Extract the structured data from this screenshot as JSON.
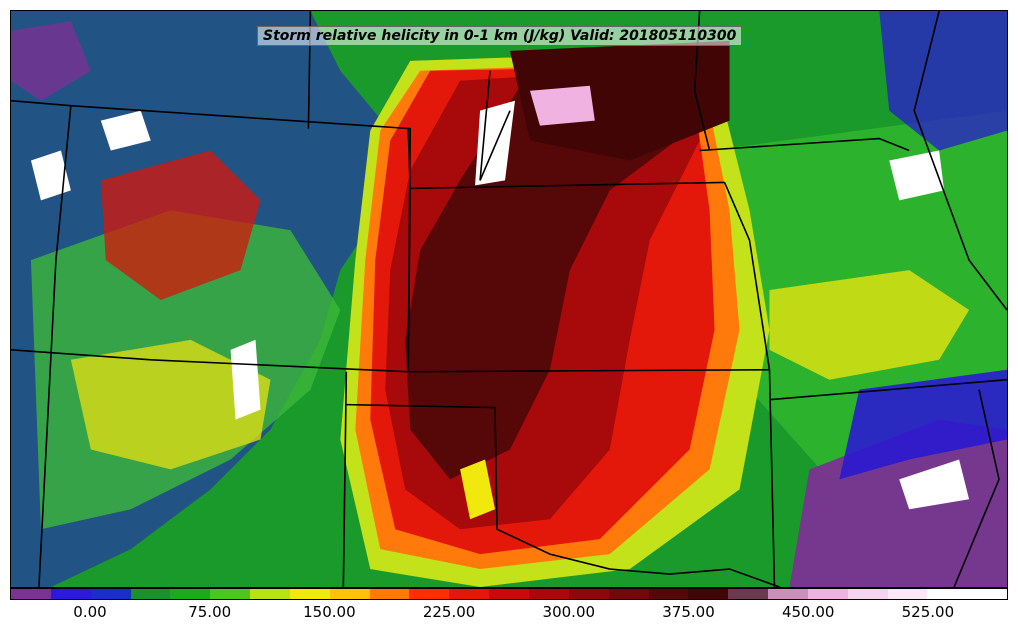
{
  "title": "Storm relative helicity in 0-1 km (J/kg) Valid: 201805110300",
  "colorbar": {
    "colors": [
      "#7b3294",
      "#2b1ad6",
      "#1a2fc4",
      "#1f8f2b",
      "#1ca81f",
      "#4ec622",
      "#b7e21a",
      "#f1e80d",
      "#ffc20a",
      "#ff7a0a",
      "#ff2d0a",
      "#e3180a",
      "#c70b0a",
      "#a8090a",
      "#8a0a0a",
      "#700a0a",
      "#560808",
      "#410505",
      "#6b3a4f",
      "#cc8fb9",
      "#f0b2e0",
      "#f6d3ee",
      "#fbe8f6",
      "#ffffff",
      "#ffffff"
    ],
    "tick_labels": [
      "0.00",
      "75.00",
      "150.00",
      "225.00",
      "300.00",
      "375.00",
      "450.00",
      "525.00"
    ]
  },
  "map": {
    "background_color": "#1a9a2a",
    "boundary_color": "#000000"
  }
}
